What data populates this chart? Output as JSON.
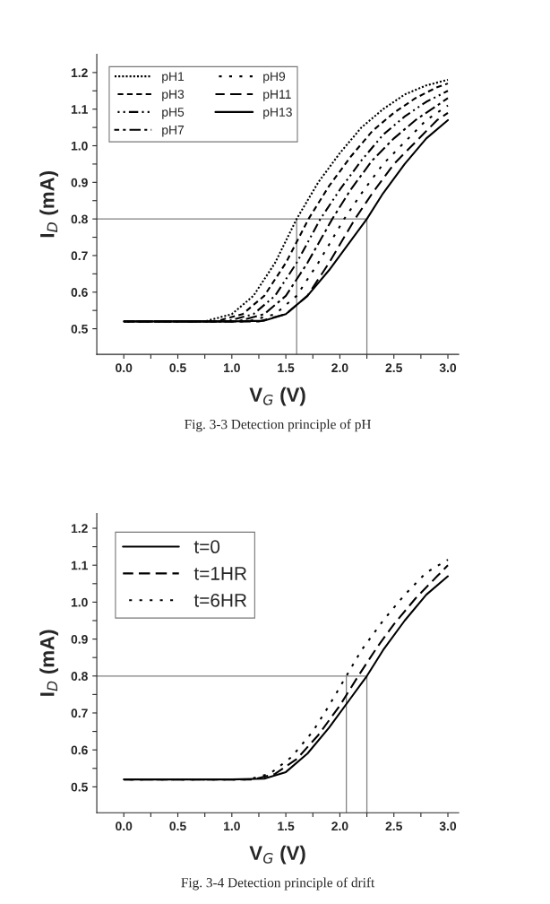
{
  "chart_data": [
    {
      "type": "line",
      "xlabel": "V$_{G}$ (V)",
      "ylabel": "I$_{D}$ (mA)",
      "legend": "top left",
      "grid": false,
      "xlim": [
        -0.25,
        3.1
      ],
      "ylim": [
        0.43,
        1.25
      ],
      "xticks": [
        {
          "value": 0,
          "label": "0.0"
        },
        {
          "value": 0.25,
          "label": null
        },
        {
          "value": 0.5,
          "label": "0.5"
        },
        {
          "value": 0.75,
          "label": null
        },
        {
          "value": 1,
          "label": "1.0"
        },
        {
          "value": 1.25,
          "label": null
        },
        {
          "value": 1.5,
          "label": "1.5"
        },
        {
          "value": 1.75,
          "label": null
        },
        {
          "value": 2,
          "label": "2.0"
        },
        {
          "value": 2.25,
          "label": null
        },
        {
          "value": 2.5,
          "label": "2.5"
        },
        {
          "value": 2.75,
          "label": null
        },
        {
          "value": 3,
          "label": "3.0"
        }
      ],
      "yticks": [
        0.5,
        {
          "value": 0.55,
          "label": null
        },
        0.6,
        {
          "value": 0.65,
          "label": null
        },
        0.7,
        {
          "value": 0.75,
          "label": null
        },
        0.8,
        {
          "value": 0.85,
          "label": null
        },
        0.9,
        {
          "value": 0.95,
          "label": null
        },
        {
          "value": 1,
          "label": "1.0"
        },
        {
          "value": 1.05,
          "label": null
        },
        1.1,
        {
          "value": 1.15,
          "label": null
        },
        1.2
      ],
      "ref_lines": [
        {
          "axis": "y",
          "value": 0.8,
          "color": "#808080"
        },
        {
          "axis": "x",
          "value": 1.6,
          "color": "#808080"
        },
        {
          "axis": "x",
          "value": 2.25,
          "color": "#808080"
        }
      ],
      "annotations": [
        "Fig. 3-3 Detection principle of pH"
      ],
      "series": [
        {
          "name": "pH1",
          "color": "#000000",
          "line_style": "dotted",
          "x": [
            0,
            0.75,
            1.0,
            1.2,
            1.4,
            1.6,
            1.8,
            2.0,
            2.2,
            2.4,
            2.6,
            2.8,
            3.0
          ],
          "values": [
            0.52,
            0.52,
            0.54,
            0.59,
            0.68,
            0.8,
            0.9,
            0.98,
            1.05,
            1.1,
            1.14,
            1.165,
            1.18
          ]
        },
        {
          "name": "pH3",
          "color": "#000000",
          "line_style": "short_dashed",
          "x": [
            0,
            0.85,
            1.1,
            1.3,
            1.5,
            1.71,
            1.9,
            2.1,
            2.3,
            2.5,
            2.7,
            2.9,
            3.0
          ],
          "values": [
            0.52,
            0.52,
            0.54,
            0.59,
            0.68,
            0.8,
            0.89,
            0.97,
            1.04,
            1.09,
            1.13,
            1.16,
            1.17
          ]
        },
        {
          "name": "pH5",
          "color": "#000000",
          "line_style": "dashdotdot",
          "x": [
            0,
            0.95,
            1.2,
            1.4,
            1.6,
            1.82,
            2.0,
            2.2,
            2.4,
            2.6,
            2.8,
            3.0
          ],
          "values": [
            0.52,
            0.52,
            0.54,
            0.59,
            0.68,
            0.8,
            0.88,
            0.96,
            1.03,
            1.08,
            1.12,
            1.15
          ]
        },
        {
          "name": "pH7",
          "color": "#000000",
          "line_style": "dashdot",
          "x": [
            0,
            1.05,
            1.3,
            1.5,
            1.7,
            1.93,
            2.1,
            2.3,
            2.5,
            2.7,
            2.9,
            3.0
          ],
          "values": [
            0.52,
            0.52,
            0.54,
            0.59,
            0.68,
            0.8,
            0.88,
            0.96,
            1.02,
            1.07,
            1.11,
            1.13
          ]
        },
        {
          "name": "pH9",
          "color": "#000000",
          "line_style": "sparse_dotted",
          "x": [
            0,
            1.15,
            1.4,
            1.6,
            1.8,
            2.04,
            2.2,
            2.4,
            2.6,
            2.8,
            3.0
          ],
          "values": [
            0.52,
            0.52,
            0.54,
            0.59,
            0.68,
            0.8,
            0.87,
            0.95,
            1.01,
            1.07,
            1.11
          ]
        },
        {
          "name": "pH11",
          "color": "#000000",
          "line_style": "dashed",
          "x": [
            0,
            1.25,
            1.5,
            1.7,
            1.9,
            2.14,
            2.3,
            2.5,
            2.7,
            2.9,
            3.0
          ],
          "values": [
            0.52,
            0.52,
            0.54,
            0.59,
            0.68,
            0.8,
            0.87,
            0.95,
            1.01,
            1.07,
            1.09
          ]
        },
        {
          "name": "pH13",
          "color": "#000000",
          "line_style": "solid",
          "x": [
            0,
            1.0,
            1.3,
            1.5,
            1.7,
            1.9,
            2.1,
            2.25,
            2.4,
            2.6,
            2.8,
            3.0
          ],
          "values": [
            0.52,
            0.52,
            0.522,
            0.54,
            0.59,
            0.66,
            0.74,
            0.8,
            0.87,
            0.95,
            1.02,
            1.07
          ]
        }
      ]
    },
    {
      "type": "line",
      "xlabel": "V$_{G}$ (V)",
      "ylabel": "I$_{D}$ (mA)",
      "legend": "top left",
      "grid": false,
      "xlim": [
        -0.25,
        3.1
      ],
      "ylim": [
        0.43,
        1.24
      ],
      "xticks": [
        {
          "value": 0,
          "label": "0.0"
        },
        {
          "value": 0.25,
          "label": null
        },
        {
          "value": 0.5,
          "label": "0.5"
        },
        {
          "value": 0.75,
          "label": null
        },
        {
          "value": 1,
          "label": "1.0"
        },
        {
          "value": 1.25,
          "label": null
        },
        {
          "value": 1.5,
          "label": "1.5"
        },
        {
          "value": 1.75,
          "label": null
        },
        {
          "value": 2,
          "label": "2.0"
        },
        {
          "value": 2.25,
          "label": null
        },
        {
          "value": 2.5,
          "label": "2.5"
        },
        {
          "value": 2.75,
          "label": null
        },
        {
          "value": 3,
          "label": "3.0"
        }
      ],
      "yticks": [
        0.5,
        {
          "value": 0.55,
          "label": null
        },
        0.6,
        {
          "value": 0.65,
          "label": null
        },
        0.7,
        {
          "value": 0.75,
          "label": null
        },
        0.8,
        {
          "value": 0.85,
          "label": null
        },
        0.9,
        {
          "value": 0.95,
          "label": null
        },
        {
          "value": 1,
          "label": "1.0"
        },
        {
          "value": 1.05,
          "label": null
        },
        1.1,
        {
          "value": 1.15,
          "label": null
        },
        1.2
      ],
      "ref_lines": [
        {
          "axis": "y",
          "value": 0.8,
          "color": "#808080"
        },
        {
          "axis": "x",
          "value": 2.06,
          "color": "#808080"
        },
        {
          "axis": "x",
          "value": 2.25,
          "color": "#808080"
        }
      ],
      "annotations": [
        "Fig. 3-4 Detection principle of drift"
      ],
      "series": [
        {
          "name": "t=0",
          "color": "#000000",
          "line_style": "solid",
          "x": [
            0,
            1.0,
            1.3,
            1.5,
            1.7,
            1.9,
            2.1,
            2.25,
            2.4,
            2.6,
            2.8,
            3.0
          ],
          "values": [
            0.52,
            0.52,
            0.522,
            0.54,
            0.59,
            0.66,
            0.74,
            0.8,
            0.87,
            0.95,
            1.02,
            1.07
          ]
        },
        {
          "name": "t=1HR",
          "color": "#000000",
          "line_style": "dashed",
          "x": [
            0,
            1.2,
            1.4,
            1.6,
            1.8,
            2.0,
            2.17,
            2.35,
            2.5,
            2.7,
            2.9,
            3.0
          ],
          "values": [
            0.52,
            0.52,
            0.535,
            0.575,
            0.64,
            0.72,
            0.8,
            0.88,
            0.94,
            1.01,
            1.07,
            1.1
          ]
        },
        {
          "name": "t=6HR",
          "color": "#000000",
          "line_style": "sparse_dotted",
          "x": [
            0,
            1.15,
            1.35,
            1.55,
            1.75,
            1.9,
            2.06,
            2.2,
            2.4,
            2.6,
            2.8,
            3.0
          ],
          "values": [
            0.52,
            0.52,
            0.535,
            0.58,
            0.65,
            0.72,
            0.8,
            0.87,
            0.95,
            1.02,
            1.08,
            1.115
          ]
        }
      ]
    }
  ]
}
